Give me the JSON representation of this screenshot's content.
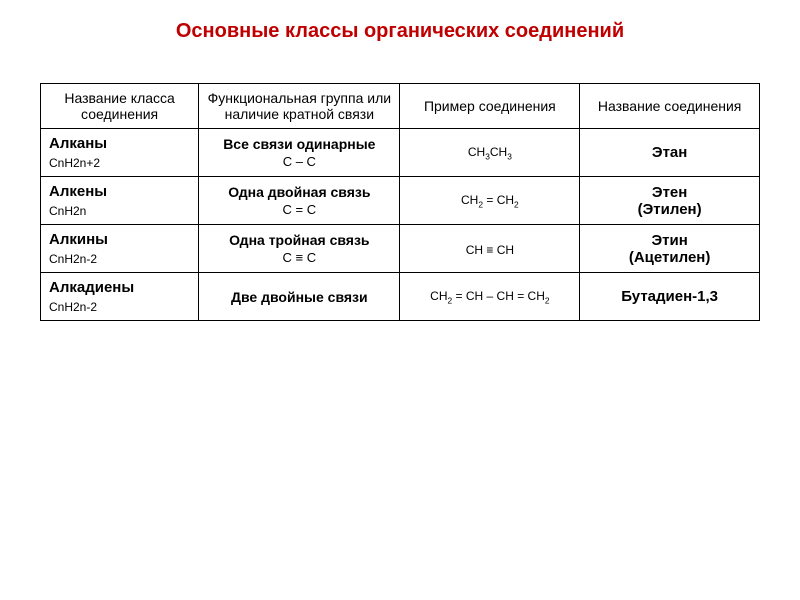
{
  "title": "Основные классы органических соединений",
  "title_color": "#c00000",
  "headers": {
    "h1": "Название класса соединения",
    "h2": "Функциональная группа или наличие кратной связи",
    "h3": "Пример соединения",
    "h4": "Название соединения"
  },
  "rows": [
    {
      "class_name": "Алканы",
      "class_formula": "CnH2n+2",
      "bond_desc": "Все связи одинарные",
      "bond_struct": "C – C",
      "example_html": "CH<sub>3</sub>CH<sub>3</sub>",
      "compound_name": "Этан",
      "compound_alt": ""
    },
    {
      "class_name": "Алкены",
      "class_formula": "CnH2n",
      "bond_desc": "Одна двойная связь",
      "bond_struct": "C = C",
      "example_html": "CH<sub>2</sub> = CH<sub>2</sub>",
      "compound_name": "Этен",
      "compound_alt": "(Этилен)"
    },
    {
      "class_name": "Алкины",
      "class_formula": "CnH2n-2",
      "bond_desc": "Одна тройная связь",
      "bond_struct": "C ≡ C",
      "example_html": "CH ≡ CH",
      "compound_name": "Этин",
      "compound_alt": "(Ацетилен)"
    },
    {
      "class_name": "Алкадиены",
      "class_formula": "CnH2n-2",
      "bond_desc": "Две двойные связи",
      "bond_struct": "",
      "example_html": "CH<sub>2</sub> = CH – CH = CH<sub>2</sub>",
      "compound_name": "Бутадиен-1,3",
      "compound_alt": ""
    }
  ]
}
